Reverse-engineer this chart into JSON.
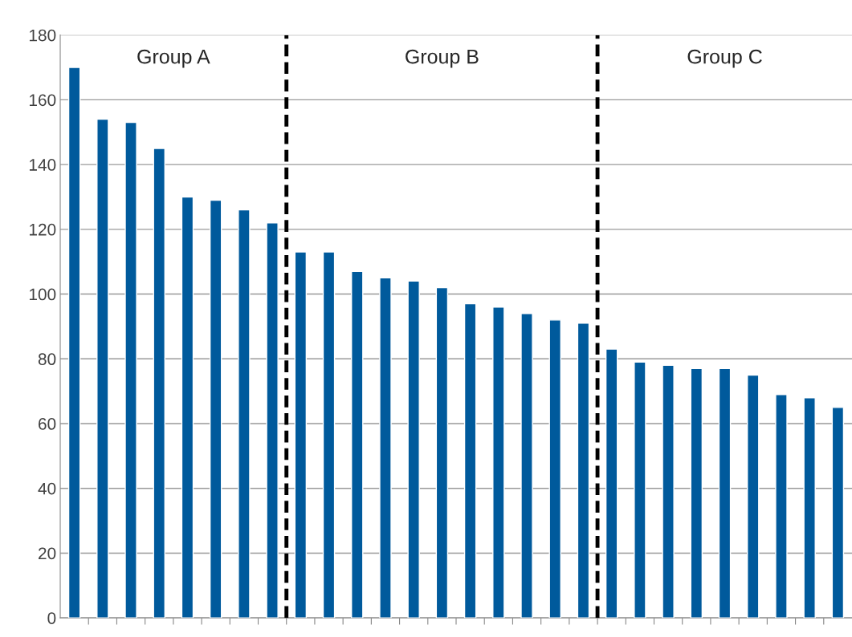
{
  "chart_data": {
    "type": "bar",
    "categories": [
      null,
      null,
      null,
      null,
      null,
      null,
      null,
      null,
      null,
      null,
      null,
      null,
      null,
      null,
      null,
      null,
      null,
      null,
      null,
      null,
      null,
      null,
      null,
      null,
      null,
      null,
      null,
      null
    ],
    "values": [
      170,
      154,
      153,
      145,
      130,
      129,
      126,
      122,
      113,
      113,
      107,
      105,
      104,
      102,
      97,
      96,
      94,
      92,
      91,
      83,
      79,
      78,
      77,
      77,
      75,
      69,
      68,
      65
    ],
    "color": "#005a9c",
    "ylim": [
      0,
      180
    ],
    "yticks": [
      0,
      20,
      40,
      60,
      80,
      100,
      120,
      140,
      160,
      180
    ],
    "grid": "y",
    "tick_labels": "y",
    "annotations": [
      "Group A",
      "Group B",
      "Group C"
    ]
  }
}
